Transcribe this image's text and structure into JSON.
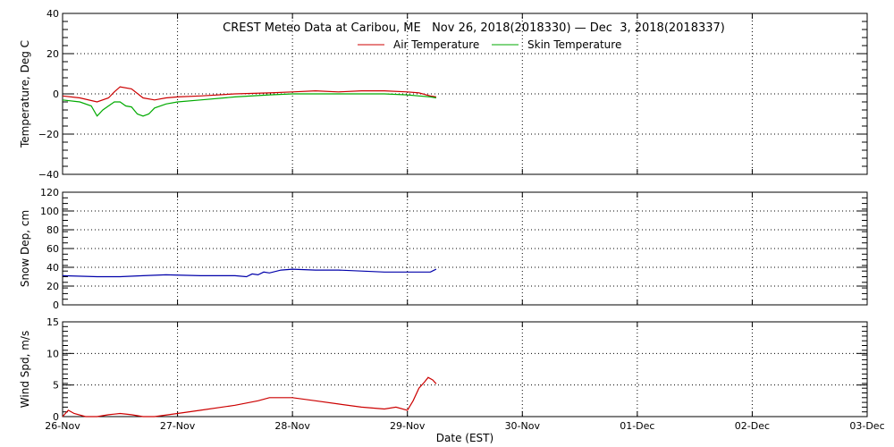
{
  "title": "CREST Meteo Data at Caribou, ME   Nov 26, 2018(2018330) — Dec  3, 2018(2018337)",
  "xlabel": "Date (EST)",
  "x_ticks": [
    "26-Nov",
    "27-Nov",
    "28-Nov",
    "29-Nov",
    "30-Nov",
    "01-Dec",
    "02-Dec",
    "03-Dec"
  ],
  "legend": [
    {
      "name": "Air Temperature",
      "color": "#cc0000"
    },
    {
      "name": "Skin Temperature",
      "color": "#00aa00"
    }
  ],
  "colors": {
    "air": "#cc0000",
    "skin": "#00aa00",
    "snow": "#0000aa",
    "wind": "#cc0000"
  },
  "chart_data": [
    {
      "type": "line",
      "ylabel": "Temperature, Deg C",
      "ylim": [
        -40,
        40
      ],
      "yticks": [
        "40",
        "20",
        "0",
        "−20",
        "−40"
      ],
      "ytick_values": [
        40,
        20,
        0,
        -20,
        -40
      ],
      "grid": true,
      "x_unit": "days since 26-Nov",
      "series": [
        {
          "name": "Air Temperature",
          "color": "#cc0000",
          "points": [
            [
              0,
              -1
            ],
            [
              0.15,
              -2
            ],
            [
              0.3,
              -4
            ],
            [
              0.4,
              -2
            ],
            [
              0.45,
              1
            ],
            [
              0.5,
              3.5
            ],
            [
              0.6,
              2.5
            ],
            [
              0.7,
              -2
            ],
            [
              0.8,
              -3
            ],
            [
              0.9,
              -2
            ],
            [
              1.0,
              -1.5
            ],
            [
              1.2,
              -1
            ],
            [
              1.5,
              0
            ],
            [
              1.8,
              0.5
            ],
            [
              2.0,
              1
            ],
            [
              2.2,
              1.5
            ],
            [
              2.4,
              1
            ],
            [
              2.6,
              1.5
            ],
            [
              2.8,
              1.5
            ],
            [
              3.0,
              1
            ],
            [
              3.1,
              0.5
            ],
            [
              3.2,
              -1
            ],
            [
              3.25,
              -1.5
            ]
          ]
        },
        {
          "name": "Skin Temperature",
          "color": "#00aa00",
          "points": [
            [
              0,
              -3
            ],
            [
              0.15,
              -4
            ],
            [
              0.25,
              -6
            ],
            [
              0.3,
              -11
            ],
            [
              0.35,
              -8
            ],
            [
              0.4,
              -6
            ],
            [
              0.45,
              -4
            ],
            [
              0.5,
              -4
            ],
            [
              0.55,
              -6
            ],
            [
              0.6,
              -6.5
            ],
            [
              0.65,
              -10
            ],
            [
              0.7,
              -11
            ],
            [
              0.75,
              -10
            ],
            [
              0.8,
              -7
            ],
            [
              0.9,
              -5
            ],
            [
              1.0,
              -4
            ],
            [
              1.2,
              -3
            ],
            [
              1.5,
              -1.5
            ],
            [
              1.8,
              -0.5
            ],
            [
              2.0,
              0
            ],
            [
              2.4,
              0
            ],
            [
              2.8,
              0
            ],
            [
              3.0,
              -0.5
            ],
            [
              3.1,
              -1
            ],
            [
              3.2,
              -1.5
            ],
            [
              3.25,
              -2
            ]
          ]
        }
      ]
    },
    {
      "type": "line",
      "ylabel": "Snow Dep, cm",
      "ylim": [
        0,
        120
      ],
      "yticks": [
        "120",
        "100",
        "80",
        "60",
        "40",
        "20",
        "0"
      ],
      "ytick_values": [
        120,
        100,
        80,
        60,
        40,
        20,
        0
      ],
      "grid": true,
      "x_unit": "days since 26-Nov",
      "series": [
        {
          "name": "Snow Depth",
          "color": "#0000aa",
          "points": [
            [
              0,
              31
            ],
            [
              0.3,
              30
            ],
            [
              0.5,
              30
            ],
            [
              0.7,
              31
            ],
            [
              0.9,
              32
            ],
            [
              1.2,
              31
            ],
            [
              1.5,
              31
            ],
            [
              1.6,
              30
            ],
            [
              1.65,
              33
            ],
            [
              1.7,
              32
            ],
            [
              1.75,
              35
            ],
            [
              1.8,
              34
            ],
            [
              1.9,
              37
            ],
            [
              2.0,
              38
            ],
            [
              2.2,
              37
            ],
            [
              2.4,
              37
            ],
            [
              2.6,
              36
            ],
            [
              2.8,
              35
            ],
            [
              3.0,
              35
            ],
            [
              3.1,
              35
            ],
            [
              3.2,
              35
            ],
            [
              3.25,
              38
            ]
          ]
        }
      ]
    },
    {
      "type": "line",
      "ylabel": "Wind Spd, m/s",
      "ylim": [
        0,
        15
      ],
      "yticks": [
        "15",
        "10",
        "5",
        "0"
      ],
      "ytick_values": [
        15,
        10,
        5,
        0
      ],
      "grid": true,
      "x_unit": "days since 26-Nov",
      "series": [
        {
          "name": "Wind Speed",
          "color": "#cc0000",
          "points": [
            [
              0,
              0
            ],
            [
              0.05,
              1
            ],
            [
              0.1,
              0.5
            ],
            [
              0.2,
              0
            ],
            [
              0.3,
              0
            ],
            [
              0.4,
              0.3
            ],
            [
              0.5,
              0.5
            ],
            [
              0.6,
              0.3
            ],
            [
              0.7,
              0
            ],
            [
              0.8,
              0
            ],
            [
              1.0,
              0.5
            ],
            [
              1.2,
              1
            ],
            [
              1.5,
              1.8
            ],
            [
              1.7,
              2.5
            ],
            [
              1.8,
              3
            ],
            [
              2.0,
              3
            ],
            [
              2.2,
              2.5
            ],
            [
              2.4,
              2
            ],
            [
              2.6,
              1.5
            ],
            [
              2.8,
              1.2
            ],
            [
              2.9,
              1.5
            ],
            [
              3.0,
              1.0
            ],
            [
              3.05,
              2.5
            ],
            [
              3.1,
              4.5
            ],
            [
              3.15,
              5.5
            ],
            [
              3.18,
              6.2
            ],
            [
              3.22,
              5.8
            ],
            [
              3.25,
              5.2
            ]
          ]
        }
      ]
    }
  ]
}
